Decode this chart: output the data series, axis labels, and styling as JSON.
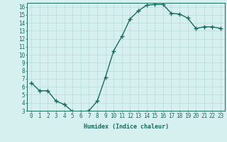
{
  "x": [
    0,
    1,
    2,
    3,
    4,
    5,
    6,
    7,
    8,
    9,
    10,
    11,
    12,
    13,
    14,
    15,
    16,
    17,
    18,
    19,
    20,
    21,
    22,
    23
  ],
  "y": [
    6.5,
    5.5,
    5.5,
    4.2,
    3.8,
    2.9,
    2.8,
    3.0,
    4.2,
    7.2,
    10.5,
    12.3,
    14.5,
    15.5,
    16.2,
    16.3,
    16.3,
    15.2,
    15.1,
    14.6,
    13.3,
    13.5,
    13.5,
    13.3
  ],
  "xlabel": "Humidex (Indice chaleur)",
  "ylim": [
    3,
    16.5
  ],
  "xlim": [
    -0.5,
    23.5
  ],
  "yticks": [
    3,
    4,
    5,
    6,
    7,
    8,
    9,
    10,
    11,
    12,
    13,
    14,
    15,
    16
  ],
  "xtick_labels": [
    "0",
    "1",
    "2",
    "3",
    "4",
    "5",
    "6",
    "7",
    "8",
    "9",
    "10",
    "11",
    "12",
    "13",
    "14",
    "15",
    "16",
    "17",
    "18",
    "19",
    "20",
    "21",
    "22",
    "23"
  ],
  "line_color": "#1a6b5e",
  "bg_color": "#d6f0ef",
  "grid_color": "#b8dbd9",
  "marker": "+",
  "linewidth": 1.0,
  "markersize": 4,
  "tick_fontsize": 5.5,
  "xlabel_fontsize": 6.0
}
